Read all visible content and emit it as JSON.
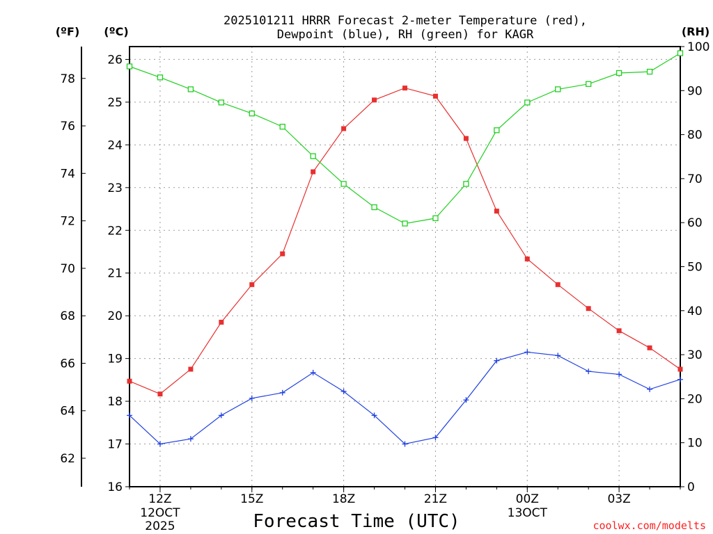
{
  "chart_data": {
    "type": "line",
    "title_line1": "2025101211 HRRR Forecast 2-meter Temperature (red),",
    "title_line2": "Dewpoint (blue), RH (green) for KAGR",
    "xlabel": "Forecast Time (UTC)",
    "credit": "coolwx.com/modelts",
    "units": {
      "fahrenheit": "(ºF)",
      "celsius": "(ºC)",
      "rh": "(RH)"
    },
    "x": [
      11,
      12,
      13,
      14,
      15,
      16,
      17,
      18,
      19,
      20,
      21,
      22,
      23,
      24,
      25,
      26,
      27,
      28,
      29
    ],
    "x_ticks": [
      {
        "hour": 12,
        "label": "12Z",
        "sub1": "12OCT",
        "sub2": "2025"
      },
      {
        "hour": 15,
        "label": "15Z",
        "sub1": "",
        "sub2": ""
      },
      {
        "hour": 18,
        "label": "18Z",
        "sub1": "",
        "sub2": ""
      },
      {
        "hour": 21,
        "label": "21Z",
        "sub1": "",
        "sub2": ""
      },
      {
        "hour": 24,
        "label": "00Z",
        "sub1": "13OCT",
        "sub2": ""
      },
      {
        "hour": 27,
        "label": "03Z",
        "sub1": "",
        "sub2": ""
      }
    ],
    "xlim": [
      11,
      29
    ],
    "ylim_c": [
      16,
      26.3
    ],
    "yticks_c": [
      "16",
      "17",
      "18",
      "19",
      "20",
      "21",
      "22",
      "23",
      "24",
      "25",
      "26"
    ],
    "yticks_f": [
      "62",
      "64",
      "66",
      "68",
      "70",
      "72",
      "74",
      "76",
      "78"
    ],
    "ylim_rh": [
      0,
      100
    ],
    "yticks_rh": [
      "0",
      "10",
      "20",
      "30",
      "40",
      "50",
      "60",
      "70",
      "80",
      "90",
      "100"
    ],
    "series": [
      {
        "name": "Temperature",
        "color": "#e83030",
        "marker": "filled-square",
        "values": [
          18.47,
          18.17,
          18.75,
          19.85,
          20.73,
          21.45,
          23.37,
          24.38,
          25.05,
          25.33,
          25.14,
          24.15,
          22.45,
          21.33,
          20.73,
          20.17,
          19.65,
          19.25,
          18.75
        ]
      },
      {
        "name": "Dewpoint",
        "color": "#2040e0",
        "marker": "plus",
        "values": [
          17.67,
          17.0,
          17.12,
          17.67,
          18.07,
          18.2,
          18.67,
          18.23,
          17.67,
          17.0,
          17.15,
          18.03,
          18.95,
          19.15,
          19.07,
          18.7,
          18.63,
          18.28,
          18.51
        ]
      },
      {
        "name": "RH",
        "color": "#20d020",
        "marker": "open-square",
        "values": [
          95.5,
          93.0,
          90.3,
          87.3,
          84.8,
          81.8,
          75.1,
          68.8,
          63.5,
          59.8,
          61.0,
          68.8,
          81.0,
          87.3,
          90.3,
          91.5,
          94.0,
          94.3,
          98.5
        ]
      }
    ]
  }
}
